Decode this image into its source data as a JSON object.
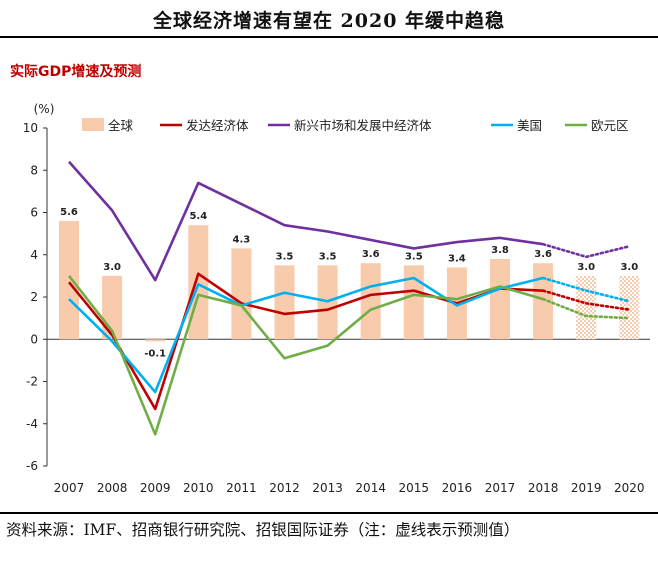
{
  "header": {
    "title": "全球经济增速有望在 2020 年缓中趋稳"
  },
  "footer": {
    "source": "资料来源：IMF、招商银行研究院、招银国际证券（注：虚线表示预测值）"
  },
  "chart_data": {
    "type": "bar+line",
    "subtitle": "实际GDP增速及预测",
    "ylabel": "(%)",
    "ylim": [
      -6,
      10
    ],
    "yticks": [
      -6,
      -4,
      -2,
      0,
      2,
      4,
      6,
      8,
      10
    ],
    "categories": [
      "2007",
      "2008",
      "2009",
      "2010",
      "2011",
      "2012",
      "2013",
      "2014",
      "2015",
      "2016",
      "2017",
      "2018",
      "2019",
      "2020"
    ],
    "forecast_from_index": 12,
    "bar_series": {
      "name": "全球",
      "color": "#f8cbad",
      "values": [
        5.6,
        3.0,
        -0.1,
        5.4,
        4.3,
        3.5,
        3.5,
        3.6,
        3.5,
        3.4,
        3.8,
        3.6,
        3.0,
        3.0
      ],
      "labels": [
        "5.6",
        "3.0",
        "-0.1",
        "5.4",
        "4.3",
        "3.5",
        "3.5",
        "3.6",
        "3.5",
        "3.4",
        "3.8",
        "3.6",
        "3.0",
        "3.0"
      ]
    },
    "series": [
      {
        "name": "发达经济体",
        "color": "#c00000",
        "values": [
          2.7,
          0.2,
          -3.3,
          3.1,
          1.7,
          1.2,
          1.4,
          2.1,
          2.3,
          1.7,
          2.4,
          2.3,
          1.7,
          1.4
        ]
      },
      {
        "name": "新兴市场和发展中经济体",
        "color": "#7030a0",
        "values": [
          8.4,
          6.1,
          2.8,
          7.4,
          6.4,
          5.4,
          5.1,
          4.7,
          4.3,
          4.6,
          4.8,
          4.5,
          3.9,
          4.4
        ]
      },
      {
        "name": "美国",
        "color": "#00b0f0",
        "values": [
          1.9,
          -0.1,
          -2.5,
          2.6,
          1.6,
          2.2,
          1.8,
          2.5,
          2.9,
          1.6,
          2.4,
          2.9,
          2.3,
          1.8
        ]
      },
      {
        "name": "欧元区",
        "color": "#70ad47",
        "values": [
          3.0,
          0.4,
          -4.5,
          2.1,
          1.6,
          -0.9,
          -0.3,
          1.4,
          2.1,
          1.9,
          2.5,
          1.9,
          1.1,
          1.0
        ]
      }
    ]
  }
}
